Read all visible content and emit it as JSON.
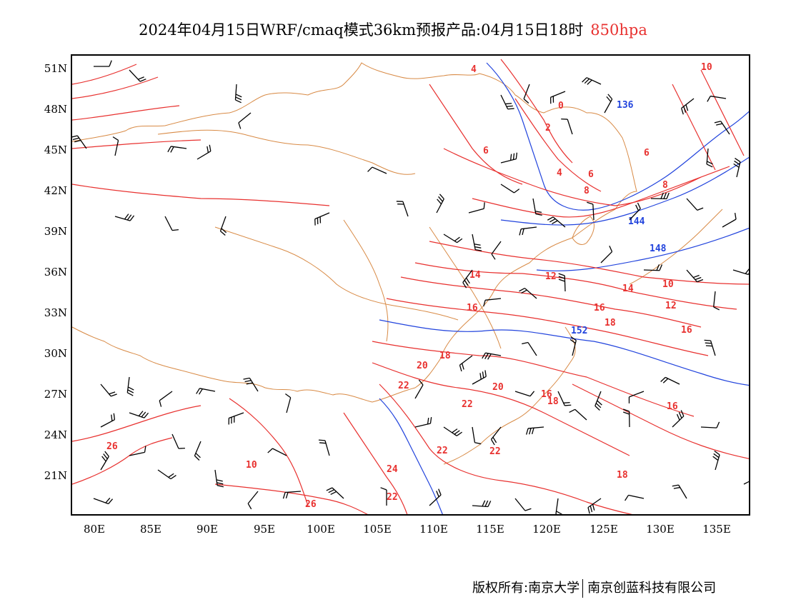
{
  "title": {
    "main": "2024年04月15日WRF/cmaq模式36km预报产品:04月15日18时",
    "level": "850hpa",
    "level_color": "#e8312f"
  },
  "axes": {
    "lat_labels": [
      "51N",
      "48N",
      "45N",
      "42N",
      "39N",
      "36N",
      "33N",
      "30N",
      "27N",
      "24N",
      "21N"
    ],
    "lon_labels": [
      "80E",
      "85E",
      "90E",
      "95E",
      "100E",
      "105E",
      "110E",
      "115E",
      "120E",
      "125E",
      "130E",
      "135E"
    ]
  },
  "colors": {
    "temperature_contour": "#e8312f",
    "height_contour": "#2244dd",
    "borders": "#d88a45",
    "wind_barbs": "#000000"
  },
  "contour_labels": {
    "temperature": [
      "4",
      "0",
      "2",
      "6",
      "4",
      "6",
      "8",
      "6",
      "8",
      "10",
      "14",
      "12",
      "14",
      "10",
      "12",
      "16",
      "18",
      "16",
      "16",
      "18",
      "20",
      "18",
      "22",
      "20",
      "22",
      "22",
      "16",
      "18",
      "22",
      "24",
      "22",
      "26",
      "26",
      "10",
      "16"
    ],
    "height": [
      "136",
      "144",
      "148",
      "152"
    ]
  },
  "footer": {
    "left": "版权所有:南京大学",
    "right": "南京创蓝科技有限公司"
  }
}
